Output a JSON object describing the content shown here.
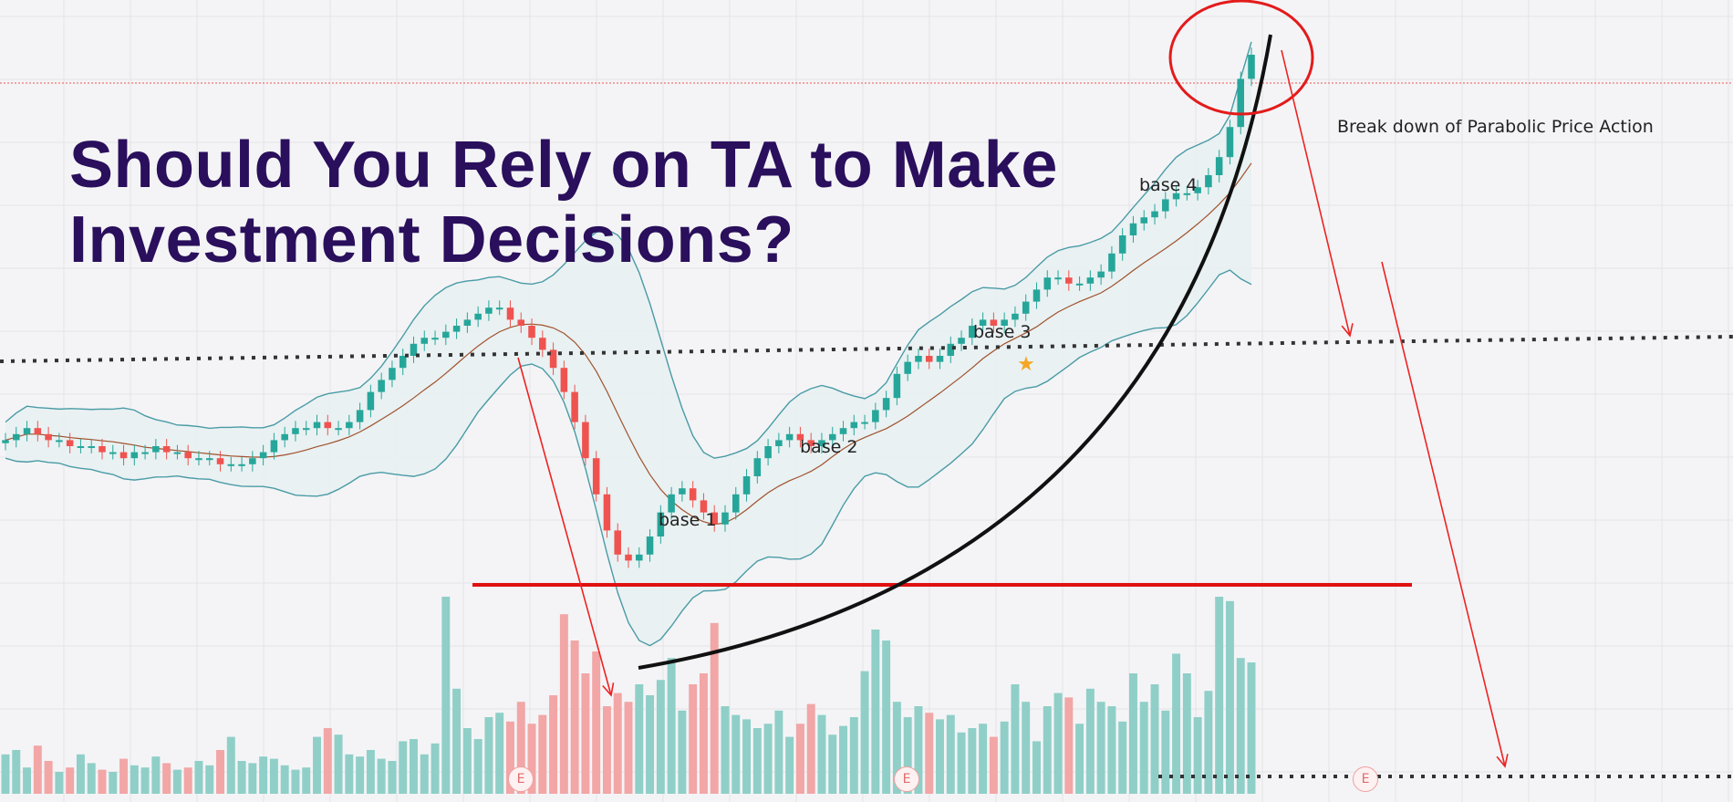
{
  "headline": {
    "line1": "Should You Rely on TA to Make",
    "line2": "Investment Decisions?"
  },
  "chart_data": {
    "type": "candlestick",
    "title": "",
    "xlabel": "",
    "ylabel": "",
    "series": [
      {
        "name": "price",
        "values": [
          0.36,
          0.37,
          0.38,
          0.37,
          0.36,
          0.36,
          0.35,
          0.35,
          0.35,
          0.34,
          0.34,
          0.33,
          0.34,
          0.34,
          0.35,
          0.34,
          0.34,
          0.33,
          0.33,
          0.33,
          0.32,
          0.32,
          0.32,
          0.33,
          0.34,
          0.36,
          0.37,
          0.38,
          0.38,
          0.39,
          0.38,
          0.38,
          0.39,
          0.41,
          0.44,
          0.46,
          0.48,
          0.5,
          0.52,
          0.53,
          0.53,
          0.54,
          0.55,
          0.56,
          0.57,
          0.58,
          0.58,
          0.56,
          0.55,
          0.53,
          0.51,
          0.48,
          0.44,
          0.39,
          0.33,
          0.27,
          0.21,
          0.17,
          0.16,
          0.17,
          0.2,
          0.24,
          0.27,
          0.28,
          0.26,
          0.24,
          0.22,
          0.24,
          0.27,
          0.3,
          0.33,
          0.35,
          0.36,
          0.37,
          0.36,
          0.35,
          0.36,
          0.37,
          0.38,
          0.39,
          0.39,
          0.41,
          0.43,
          0.47,
          0.49,
          0.5,
          0.49,
          0.5,
          0.52,
          0.53,
          0.55,
          0.56,
          0.55,
          0.56,
          0.57,
          0.59,
          0.61,
          0.63,
          0.63,
          0.62,
          0.62,
          0.63,
          0.64,
          0.67,
          0.7,
          0.72,
          0.73,
          0.74,
          0.76,
          0.77,
          0.77,
          0.78,
          0.8,
          0.83,
          0.88,
          0.96,
          1.0
        ]
      },
      {
        "name": "volume",
        "values": [
          0.18,
          0.2,
          0.12,
          0.22,
          0.15,
          0.1,
          0.12,
          0.18,
          0.14,
          0.11,
          0.1,
          0.16,
          0.13,
          0.12,
          0.17,
          0.14,
          0.11,
          0.12,
          0.15,
          0.13,
          0.2,
          0.26,
          0.15,
          0.14,
          0.17,
          0.16,
          0.13,
          0.11,
          0.12,
          0.26,
          0.3,
          0.27,
          0.18,
          0.17,
          0.2,
          0.16,
          0.15,
          0.24,
          0.25,
          0.18,
          0.23,
          0.9,
          0.48,
          0.3,
          0.25,
          0.35,
          0.37,
          0.33,
          0.42,
          0.32,
          0.36,
          0.45,
          0.82,
          0.7,
          0.55,
          0.65,
          0.4,
          0.46,
          0.42,
          0.5,
          0.45,
          0.52,
          0.62,
          0.38,
          0.5,
          0.55,
          0.78,
          0.4,
          0.36,
          0.34,
          0.3,
          0.32,
          0.38,
          0.26,
          0.32,
          0.41,
          0.36,
          0.27,
          0.31,
          0.35,
          0.56,
          0.75,
          0.7,
          0.42,
          0.35,
          0.4,
          0.37,
          0.34,
          0.36,
          0.28,
          0.3,
          0.32,
          0.26,
          0.33,
          0.5,
          0.42,
          0.24,
          0.4,
          0.46,
          0.44,
          0.32,
          0.48,
          0.42,
          0.4,
          0.33,
          0.55,
          0.42,
          0.5,
          0.38,
          0.64,
          0.55,
          0.35,
          0.47,
          0.9,
          0.88,
          0.62,
          0.6
        ]
      }
    ],
    "annotations": [
      "base 1",
      "base 2",
      "base 3",
      "base 4",
      "Break down of Parabolic Price Action"
    ],
    "earnings_marker": "E",
    "colors": {
      "up": "#26a69a",
      "down": "#ef5350",
      "volume_up": "#8fcfc8",
      "volume_down": "#f2a6a6",
      "band": "#4a9ba6",
      "band_fill": "#e8f1f2",
      "midline": "#a0522d",
      "parabola": "#111111",
      "resistance": "#e01010",
      "arrow": "#ee2222",
      "headline": "#2a0f5c",
      "star": "#f5a623"
    },
    "grid": true,
    "legend": "none"
  },
  "labels": {
    "base1": "base 1",
    "base2": "base 2",
    "base3": "base 3",
    "base4": "base 4",
    "breakdown": "Break down of Parabolic Price Action",
    "e1": "E",
    "e2": "E",
    "e3": "E"
  }
}
